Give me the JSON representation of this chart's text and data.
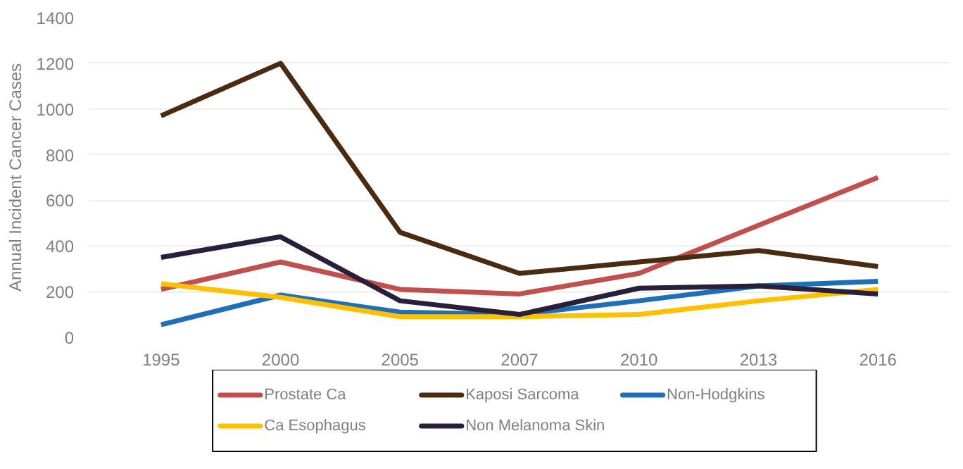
{
  "chart_data": {
    "type": "line",
    "ylabel": "Annual Incident Cancer Cases",
    "categories": [
      "1995",
      "2000",
      "2005",
      "2007",
      "2010",
      "2013",
      "2016"
    ],
    "ylim": [
      0,
      1400
    ],
    "yticks": [
      0,
      200,
      400,
      600,
      800,
      1000,
      1200,
      1400
    ],
    "grid": "y",
    "legend": "bottom",
    "series": [
      {
        "name": "Prostate Ca",
        "color": "#c0504d",
        "values": [
          210,
          330,
          210,
          190,
          280,
          490,
          700
        ]
      },
      {
        "name": "Kaposi Sarcoma",
        "color": "#4a2a10",
        "values": [
          970,
          1200,
          460,
          280,
          330,
          380,
          310
        ]
      },
      {
        "name": "Non-Hodgkins",
        "color": "#1f6fb8",
        "values": [
          55,
          185,
          110,
          100,
          160,
          225,
          245
        ]
      },
      {
        "name": "Ca Esophagus",
        "color": "#ffc000",
        "values": [
          235,
          175,
          90,
          90,
          100,
          160,
          210
        ]
      },
      {
        "name": "Non Melanoma Skin",
        "color": "#2a1f3a",
        "values": [
          350,
          440,
          160,
          100,
          215,
          225,
          190
        ]
      }
    ]
  }
}
